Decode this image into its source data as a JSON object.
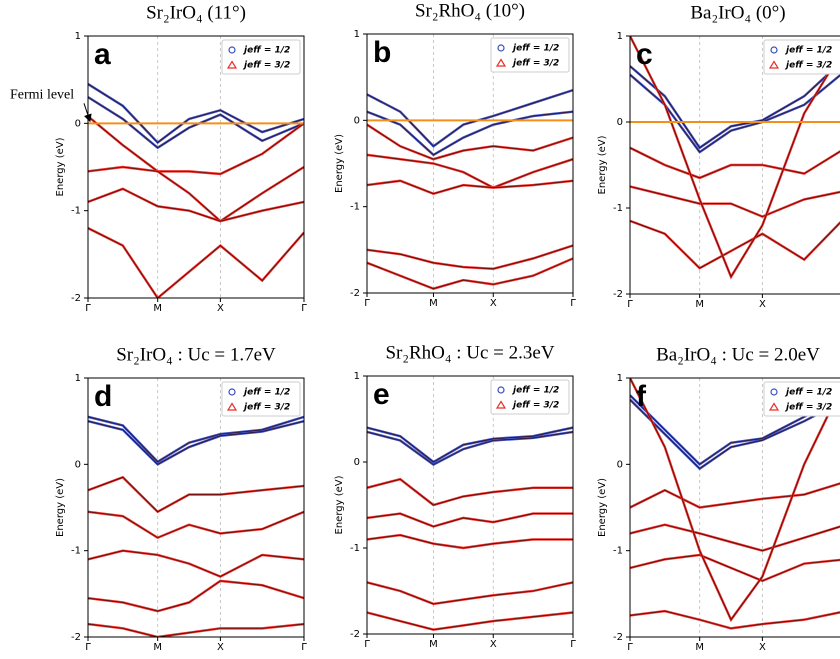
{
  "chart_data": [
    {
      "type": "line",
      "title": "Sr₂IrO₄ (11°)",
      "panel_label": "a",
      "ylabel": "Energy (eV)",
      "annotation": "Fermi level",
      "fermi_line": true,
      "grid": true,
      "legend": "upper right",
      "x": [
        0,
        0.5,
        1,
        1.45,
        1.9,
        2.5,
        3.1
      ],
      "xlim": [
        0,
        3.1
      ],
      "xticks": [
        {
          "value": 0,
          "label": "Γ"
        },
        {
          "value": 1,
          "label": "M"
        },
        {
          "value": 1.9,
          "label": "X"
        },
        {
          "value": 3.1,
          "label": "Γ"
        }
      ],
      "ylim": [
        -2,
        1
      ],
      "yticks": [
        -2,
        -1,
        0,
        1
      ],
      "series": [
        {
          "name": "jeff = 1/2",
          "color": "#3b4fbf",
          "values": [
            [
              0.45,
              0.2,
              -0.22,
              0.05,
              0.15,
              -0.1,
              0.05
            ],
            [
              0.3,
              0.05,
              -0.28,
              -0.05,
              0.1,
              -0.2,
              0.0
            ]
          ]
        },
        {
          "name": "jeff = 3/2",
          "color": "#e8302a",
          "values": [
            [
              0.08,
              -0.25,
              -0.55,
              -0.55,
              -0.58,
              -0.35,
              0.0
            ],
            [
              -0.55,
              -0.5,
              -0.55,
              -0.8,
              -1.12,
              -0.8,
              -0.5
            ],
            [
              -0.9,
              -0.75,
              -0.95,
              -1.0,
              -1.12,
              -1.0,
              -0.9
            ],
            [
              -1.2,
              -1.4,
              -2.0,
              -1.7,
              -1.4,
              -1.8,
              -1.25
            ]
          ]
        }
      ]
    },
    {
      "type": "line",
      "title": "Sr₂RhO₄ (10°)",
      "panel_label": "b",
      "ylabel": "Energy (eV)",
      "fermi_line": true,
      "grid": true,
      "legend": "upper right",
      "x": [
        0,
        0.5,
        1,
        1.45,
        1.9,
        2.5,
        3.1
      ],
      "xlim": [
        0,
        3.1
      ],
      "xticks": [
        {
          "value": 0,
          "label": "Γ"
        },
        {
          "value": 1,
          "label": "M"
        },
        {
          "value": 1.9,
          "label": "X"
        },
        {
          "value": 3.1,
          "label": "Γ"
        }
      ],
      "ylim": [
        -2,
        1
      ],
      "yticks": [
        -2,
        -1,
        0,
        1
      ],
      "series": [
        {
          "name": "jeff = 1/2",
          "color": "#3b4fbf",
          "values": [
            [
              0.3,
              0.1,
              -0.3,
              -0.05,
              0.05,
              0.2,
              0.35
            ],
            [
              0.1,
              -0.05,
              -0.4,
              -0.2,
              -0.05,
              0.05,
              0.1
            ]
          ]
        },
        {
          "name": "jeff = 3/2",
          "color": "#e8302a",
          "values": [
            [
              -0.05,
              -0.3,
              -0.45,
              -0.35,
              -0.3,
              -0.35,
              -0.2
            ],
            [
              -0.4,
              -0.45,
              -0.5,
              -0.6,
              -0.78,
              -0.6,
              -0.45
            ],
            [
              -0.75,
              -0.7,
              -0.85,
              -0.75,
              -0.78,
              -0.75,
              -0.7
            ],
            [
              -1.5,
              -1.55,
              -1.65,
              -1.7,
              -1.72,
              -1.6,
              -1.45
            ],
            [
              -1.65,
              -1.8,
              -1.95,
              -1.85,
              -1.9,
              -1.8,
              -1.6
            ]
          ]
        }
      ]
    },
    {
      "type": "line",
      "title": "Ba₂IrO₄ (0°)",
      "panel_label": "c",
      "ylabel": "Energy (eV)",
      "fermi_line": true,
      "grid": true,
      "legend": "upper right",
      "x": [
        0,
        0.5,
        1,
        1.45,
        1.9,
        2.5,
        3.1
      ],
      "xlim": [
        0,
        3.1
      ],
      "xticks": [
        {
          "value": 0,
          "label": "Γ"
        },
        {
          "value": 1,
          "label": "M"
        },
        {
          "value": 1.9,
          "label": "X"
        },
        {
          "value": 3.1,
          "label": "Γ"
        }
      ],
      "ylim": [
        -2,
        1
      ],
      "yticks": [
        -2,
        -1,
        0,
        1
      ],
      "series": [
        {
          "name": "jeff = 1/2",
          "color": "#3b4fbf",
          "values": [
            [
              0.65,
              0.3,
              -0.3,
              -0.05,
              0.02,
              0.3,
              0.75
            ],
            [
              0.55,
              0.2,
              -0.35,
              -0.1,
              0.0,
              0.2,
              0.6
            ]
          ]
        },
        {
          "name": "jeff = 3/2",
          "color": "#e8302a",
          "values": [
            [
              -0.3,
              -0.5,
              -0.65,
              -0.5,
              -0.5,
              -0.6,
              -0.3
            ],
            [
              -0.75,
              -0.85,
              -0.95,
              -0.95,
              -1.1,
              -0.9,
              -0.8
            ],
            [
              -1.15,
              -1.3,
              -1.7,
              -1.5,
              -1.3,
              -1.6,
              -1.1
            ],
            [
              1.0,
              0.2,
              -0.9,
              -1.8,
              -1.2,
              0.1,
              0.9
            ]
          ]
        }
      ]
    },
    {
      "type": "line",
      "title": "Sr₂IrO₄ : Uc = 1.7eV",
      "panel_label": "d",
      "ylabel": "Energy (eV)",
      "fermi_line": false,
      "grid": true,
      "legend": "upper right",
      "x": [
        0,
        0.5,
        1,
        1.45,
        1.9,
        2.5,
        3.1
      ],
      "xlim": [
        0,
        3.1
      ],
      "xticks": [
        {
          "value": 0,
          "label": "Γ"
        },
        {
          "value": 1,
          "label": "M"
        },
        {
          "value": 1.9,
          "label": "X"
        },
        {
          "value": 3.1,
          "label": "Γ"
        }
      ],
      "ylim": [
        -2,
        1
      ],
      "yticks": [
        -2,
        -1,
        0,
        1
      ],
      "series": [
        {
          "name": "jeff = 1/2",
          "color": "#3b4fbf",
          "values": [
            [
              0.55,
              0.45,
              0.03,
              0.25,
              0.35,
              0.4,
              0.55
            ],
            [
              0.5,
              0.4,
              0.0,
              0.2,
              0.33,
              0.38,
              0.5
            ]
          ]
        },
        {
          "name": "jeff = 3/2",
          "color": "#e8302a",
          "values": [
            [
              -0.3,
              -0.15,
              -0.55,
              -0.35,
              -0.35,
              -0.3,
              -0.25
            ],
            [
              -0.55,
              -0.6,
              -0.85,
              -0.7,
              -0.8,
              -0.75,
              -0.55
            ],
            [
              -1.1,
              -1.0,
              -1.05,
              -1.15,
              -1.3,
              -1.05,
              -1.1
            ],
            [
              -1.55,
              -1.6,
              -1.7,
              -1.6,
              -1.35,
              -1.4,
              -1.55
            ],
            [
              -1.85,
              -1.9,
              -2.0,
              -1.95,
              -1.9,
              -1.9,
              -1.85
            ]
          ]
        }
      ]
    },
    {
      "type": "line",
      "title": "Sr₂RhO₄ : Uc = 2.3eV",
      "panel_label": "e",
      "ylabel": "Energy (eV)",
      "fermi_line": false,
      "grid": true,
      "legend": "upper right",
      "x": [
        0,
        0.5,
        1,
        1.45,
        1.9,
        2.5,
        3.1
      ],
      "xlim": [
        0,
        3.1
      ],
      "xticks": [
        {
          "value": 0,
          "label": "Γ"
        },
        {
          "value": 1,
          "label": "M"
        },
        {
          "value": 1.9,
          "label": "X"
        },
        {
          "value": 3.1,
          "label": "Γ"
        }
      ],
      "ylim": [
        -2,
        1
      ],
      "yticks": [
        -2,
        -1,
        0,
        1
      ],
      "series": [
        {
          "name": "jeff = 1/2",
          "color": "#3b4fbf",
          "values": [
            [
              0.4,
              0.3,
              0.0,
              0.2,
              0.27,
              0.3,
              0.4
            ],
            [
              0.35,
              0.25,
              -0.03,
              0.15,
              0.25,
              0.28,
              0.35
            ]
          ]
        },
        {
          "name": "jeff = 3/2",
          "color": "#e8302a",
          "values": [
            [
              -0.3,
              -0.2,
              -0.5,
              -0.4,
              -0.35,
              -0.3,
              -0.3
            ],
            [
              -0.65,
              -0.6,
              -0.75,
              -0.65,
              -0.7,
              -0.6,
              -0.6
            ],
            [
              -0.9,
              -0.85,
              -0.95,
              -1.0,
              -0.95,
              -0.9,
              -0.9
            ],
            [
              -1.4,
              -1.5,
              -1.65,
              -1.6,
              -1.55,
              -1.5,
              -1.4
            ],
            [
              -1.75,
              -1.85,
              -1.95,
              -1.9,
              -1.85,
              -1.8,
              -1.75
            ]
          ]
        }
      ]
    },
    {
      "type": "line",
      "title": "Ba₂IrO₄ : Uc = 2.0eV",
      "panel_label": "f",
      "ylabel": "Energy (eV)",
      "fermi_line": false,
      "grid": true,
      "legend": "upper right",
      "x": [
        0,
        0.5,
        1,
        1.45,
        1.9,
        2.5,
        3.1
      ],
      "xlim": [
        0,
        3.1
      ],
      "xticks": [
        {
          "value": 0,
          "label": "Γ"
        },
        {
          "value": 1,
          "label": "M"
        },
        {
          "value": 1.9,
          "label": "X"
        },
        {
          "value": 3.1,
          "label": "Γ"
        }
      ],
      "ylim": [
        -2,
        1
      ],
      "yticks": [
        -2,
        -1,
        0,
        1
      ],
      "series": [
        {
          "name": "jeff = 1/2",
          "color": "#3b4fbf",
          "values": [
            [
              0.8,
              0.4,
              0.0,
              0.25,
              0.3,
              0.55,
              0.8
            ],
            [
              0.75,
              0.35,
              -0.05,
              0.2,
              0.28,
              0.5,
              0.75
            ]
          ]
        },
        {
          "name": "jeff = 3/2",
          "color": "#e8302a",
          "values": [
            [
              -0.5,
              -0.3,
              -0.5,
              -0.45,
              -0.4,
              -0.35,
              -0.2
            ],
            [
              -0.8,
              -0.7,
              -0.8,
              -0.9,
              -1.0,
              -0.85,
              -0.7
            ],
            [
              -1.2,
              -1.1,
              -1.05,
              -1.2,
              -1.35,
              -1.15,
              -1.1
            ],
            [
              -1.75,
              -1.7,
              -1.8,
              -1.9,
              -1.85,
              -1.8,
              -1.7
            ],
            [
              1.0,
              0.2,
              -1.0,
              -1.8,
              -1.3,
              0.0,
              1.0
            ]
          ]
        }
      ]
    }
  ]
}
